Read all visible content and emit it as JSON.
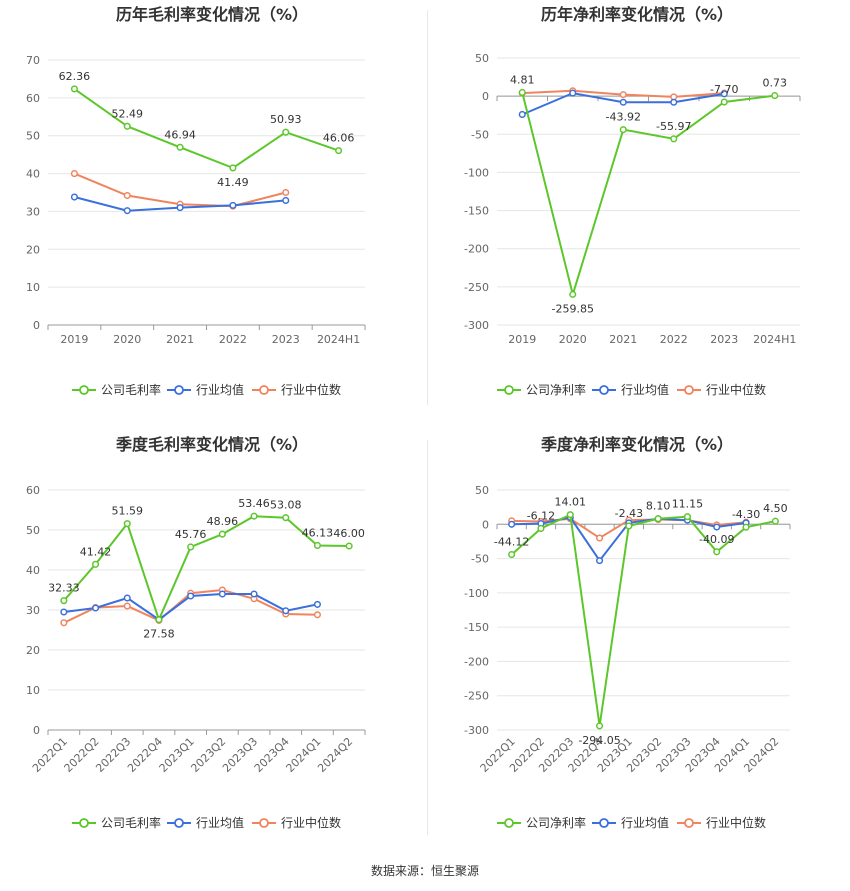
{
  "footer": {
    "source": "数据来源：恒生聚源"
  },
  "colors": {
    "company": "#5cc72a",
    "avg": "#3a6fdc",
    "median": "#f0845f",
    "grid": "#e6e6e6",
    "axis": "#999999"
  },
  "chart_data": [
    {
      "type": "line",
      "title": "历年毛利率变化情况（%）",
      "categories": [
        "2019",
        "2020",
        "2021",
        "2022",
        "2023",
        "2024H1"
      ],
      "ylim": [
        0,
        70
      ],
      "yticks": [
        0,
        10,
        20,
        30,
        40,
        50,
        60,
        70
      ],
      "grid": true,
      "legend": "bottom",
      "series": [
        {
          "name": "公司毛利率",
          "values": [
            62.36,
            52.49,
            46.94,
            41.49,
            50.93,
            46.06
          ],
          "labels": [
            "62.36",
            "52.49",
            "46.94",
            "41.49",
            "50.93",
            "46.06"
          ]
        },
        {
          "name": "行业均值",
          "values": [
            33.8,
            30.2,
            31.0,
            31.6,
            32.9,
            null
          ]
        },
        {
          "name": "行业中位数",
          "values": [
            40.0,
            34.2,
            31.9,
            31.4,
            35.0,
            null
          ]
        }
      ]
    },
    {
      "type": "line",
      "title": "历年净利率变化情况（%）",
      "categories": [
        "2019",
        "2020",
        "2021",
        "2022",
        "2023",
        "2024H1"
      ],
      "ylim": [
        -300,
        50
      ],
      "yticks": [
        -300,
        -250,
        -200,
        -150,
        -100,
        -50,
        0,
        50
      ],
      "grid": true,
      "legend": "bottom",
      "series": [
        {
          "name": "公司净利率",
          "values": [
            4.81,
            -259.85,
            -43.92,
            -55.97,
            -7.7,
            0.73
          ],
          "labels": [
            "4.81",
            "-259.85",
            "-43.92",
            "-55.97",
            "-7.70",
            "0.73"
          ]
        },
        {
          "name": "行业均值",
          "values": [
            -24,
            4,
            -8,
            -8,
            3,
            null
          ]
        },
        {
          "name": "行业中位数",
          "values": [
            4,
            7,
            2,
            -1,
            4,
            null
          ]
        }
      ]
    },
    {
      "type": "line",
      "title": "季度毛利率变化情况（%）",
      "categories": [
        "2022Q1",
        "2022Q2",
        "2022Q3",
        "2022Q4",
        "2023Q1",
        "2023Q2",
        "2023Q3",
        "2023Q4",
        "2024Q1",
        "2024Q2"
      ],
      "ylim": [
        0,
        60
      ],
      "yticks": [
        0,
        10,
        20,
        30,
        40,
        50,
        60
      ],
      "grid": true,
      "legend": "bottom",
      "series": [
        {
          "name": "公司毛利率",
          "values": [
            32.33,
            41.42,
            51.59,
            27.58,
            45.76,
            48.96,
            53.46,
            53.08,
            46.13,
            46.0
          ],
          "labels": [
            "32.33",
            "41.42",
            "51.59",
            "27.58",
            "45.76",
            "48.96",
            "53.46",
            "53.08",
            "46.13",
            "46.00"
          ]
        },
        {
          "name": "行业均值",
          "values": [
            29.5,
            30.5,
            33.0,
            27.6,
            33.5,
            34.0,
            34.0,
            29.8,
            31.4,
            null
          ]
        },
        {
          "name": "行业中位数",
          "values": [
            26.8,
            30.6,
            31.0,
            27.4,
            34.2,
            35.0,
            32.8,
            29.0,
            28.8,
            null
          ]
        }
      ]
    },
    {
      "type": "line",
      "title": "季度净利率变化情况（%）",
      "categories": [
        "2022Q1",
        "2022Q2",
        "2022Q3",
        "2022Q4",
        "2023Q1",
        "2023Q2",
        "2023Q3",
        "2023Q4",
        "2024Q1",
        "2024Q2"
      ],
      "ylim": [
        -300,
        50
      ],
      "yticks": [
        -300,
        -250,
        -200,
        -150,
        -100,
        -50,
        0,
        50
      ],
      "grid": true,
      "legend": "bottom",
      "series": [
        {
          "name": "公司净利率",
          "values": [
            -44.12,
            -6.12,
            14.01,
            -294.05,
            -2.43,
            8.1,
            11.15,
            -40.09,
            -4.3,
            4.5
          ],
          "labels": [
            "-44.12",
            "-6.12",
            "14.01",
            "-294.05",
            "-2.43",
            "8.10",
            "11.15",
            "-40.09",
            "-4.30",
            "4.50"
          ]
        },
        {
          "name": "行业均值",
          "values": [
            0,
            1,
            10,
            -53,
            2,
            8,
            6,
            -4,
            2,
            null
          ]
        },
        {
          "name": "行业中位数",
          "values": [
            5,
            4,
            8,
            -20,
            6,
            7,
            6,
            -1,
            3,
            null
          ]
        }
      ]
    }
  ]
}
